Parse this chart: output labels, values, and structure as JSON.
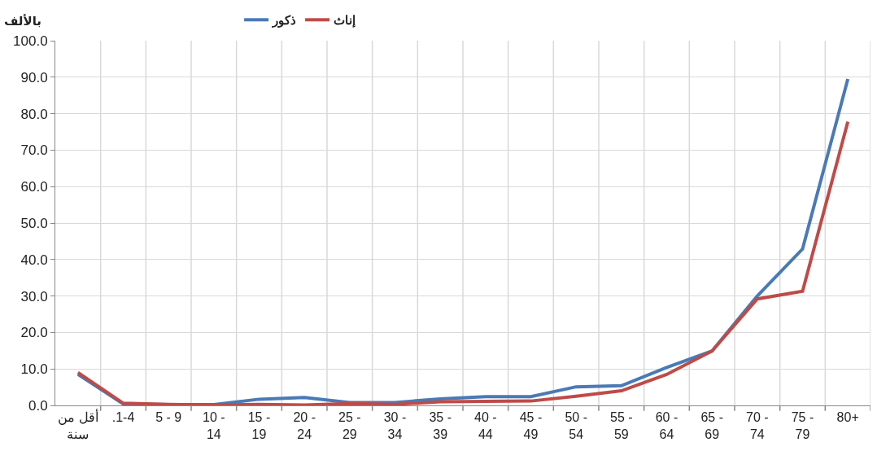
{
  "chart_data": {
    "type": "line",
    "ylabel": "بالألف",
    "categories": [
      "أقل من سنة",
      ".1-4",
      "5 - 9",
      "10 - 14",
      "15 - 19",
      "20 - 24",
      "25 - 29",
      "30 - 34",
      "35 - 39",
      "40 - 44",
      "45 - 49",
      "50 - 54",
      "55 - 59",
      "60 - 64",
      "65 - 69",
      "70 - 74",
      "75 - 79",
      "80+"
    ],
    "series": [
      {
        "name": "ذكور",
        "color": "#4a7ab5",
        "values": [
          8.5,
          0.4,
          0.2,
          0.2,
          1.7,
          2.2,
          0.8,
          0.8,
          1.8,
          2.4,
          2.4,
          5.1,
          5.4,
          10.4,
          14.9,
          30.0,
          42.9,
          89.5
        ]
      },
      {
        "name": "إناث",
        "color": "#be4b48",
        "values": [
          9.0,
          0.6,
          0.3,
          0.1,
          0.3,
          0.1,
          0.5,
          0.3,
          1.0,
          1.1,
          1.2,
          2.5,
          4.0,
          8.5,
          14.9,
          29.2,
          31.3,
          77.8
        ]
      }
    ],
    "ylim": [
      0,
      100
    ],
    "yticks": [
      {
        "value": 0,
        "label": "0.0"
      },
      {
        "value": 10,
        "label": "10.0"
      },
      {
        "value": 20,
        "label": "20.0"
      },
      {
        "value": 30,
        "label": "30.0"
      },
      {
        "value": 40,
        "label": "40.0"
      },
      {
        "value": 50,
        "label": "50.0"
      },
      {
        "value": 60,
        "label": "60.0"
      },
      {
        "value": 70,
        "label": "70.0"
      },
      {
        "value": 80,
        "label": "80.0"
      },
      {
        "value": 90,
        "label": "90.0"
      },
      {
        "value": 100,
        "label": "100.0"
      }
    ],
    "grid": true,
    "legend": "top",
    "marker": "none",
    "line_style": "solid"
  }
}
